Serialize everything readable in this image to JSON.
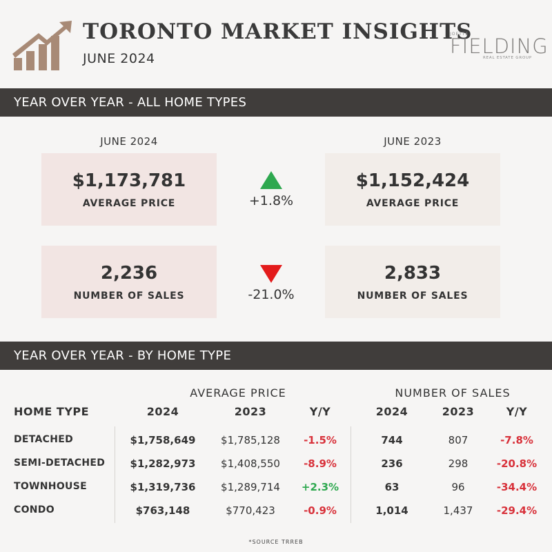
{
  "header": {
    "title": "TORONTO MARKET INSIGHTS",
    "subtitle": "JUNE 2024",
    "logo_top": "JOETTE",
    "logo_main": "FIELDING",
    "logo_sub": "REAL ESTATE GROUP",
    "icon": "growth-chart-icon"
  },
  "section1": {
    "band_label": "YEAR OVER YEAR - ALL HOME TYPES",
    "left_heading": "JUNE 2024",
    "right_heading": "JUNE 2023",
    "price": {
      "current": "$1,173,781",
      "previous": "$1,152,424",
      "label": "AVERAGE PRICE",
      "change": "+1.8%",
      "direction": "up"
    },
    "sales": {
      "current": "2,236",
      "previous": "2,833",
      "label": "NUMBER OF SALES",
      "change": "-21.0%",
      "direction": "down"
    }
  },
  "section2": {
    "band_label": "YEAR OVER YEAR - BY HOME TYPE",
    "group_price": "AVERAGE PRICE",
    "group_sales": "NUMBER OF SALES",
    "columns": [
      "HOME TYPE",
      "2024",
      "2023",
      "Y/Y",
      "2024",
      "2023",
      "Y/Y"
    ],
    "rows": [
      {
        "type": "DETACHED",
        "price_2024": "$1,758,649",
        "price_2023": "$1,785,128",
        "price_yy": "-1.5%",
        "sales_2024": "744",
        "sales_2023": "807",
        "sales_yy": "-7.8%"
      },
      {
        "type": "SEMI-DETACHED",
        "price_2024": "$1,282,973",
        "price_2023": "$1,408,550",
        "price_yy": "-8.9%",
        "sales_2024": "236",
        "sales_2023": "298",
        "sales_yy": "-20.8%"
      },
      {
        "type": "TOWNHOUSE",
        "price_2024": "$1,319,736",
        "price_2023": "$1,289,714",
        "price_yy": "+2.3%",
        "sales_2024": "63",
        "sales_2023": "96",
        "sales_yy": "-34.4%"
      },
      {
        "type": "CONDO",
        "price_2024": "$763,148",
        "price_2023": "$770,423",
        "price_yy": "-0.9%",
        "sales_2024": "1,014",
        "sales_2023": "1,437",
        "sales_yy": "-29.4%"
      }
    ]
  },
  "footer": {
    "source": "*SOURCE TRREB"
  },
  "colors": {
    "band": "#403d3b",
    "card_pink": "#f2e5e3",
    "card_beige": "#f2ede9",
    "up": "#2ea84f",
    "down": "#e31b1b",
    "neg_text": "#d8313a",
    "icon": "#a88a76"
  }
}
